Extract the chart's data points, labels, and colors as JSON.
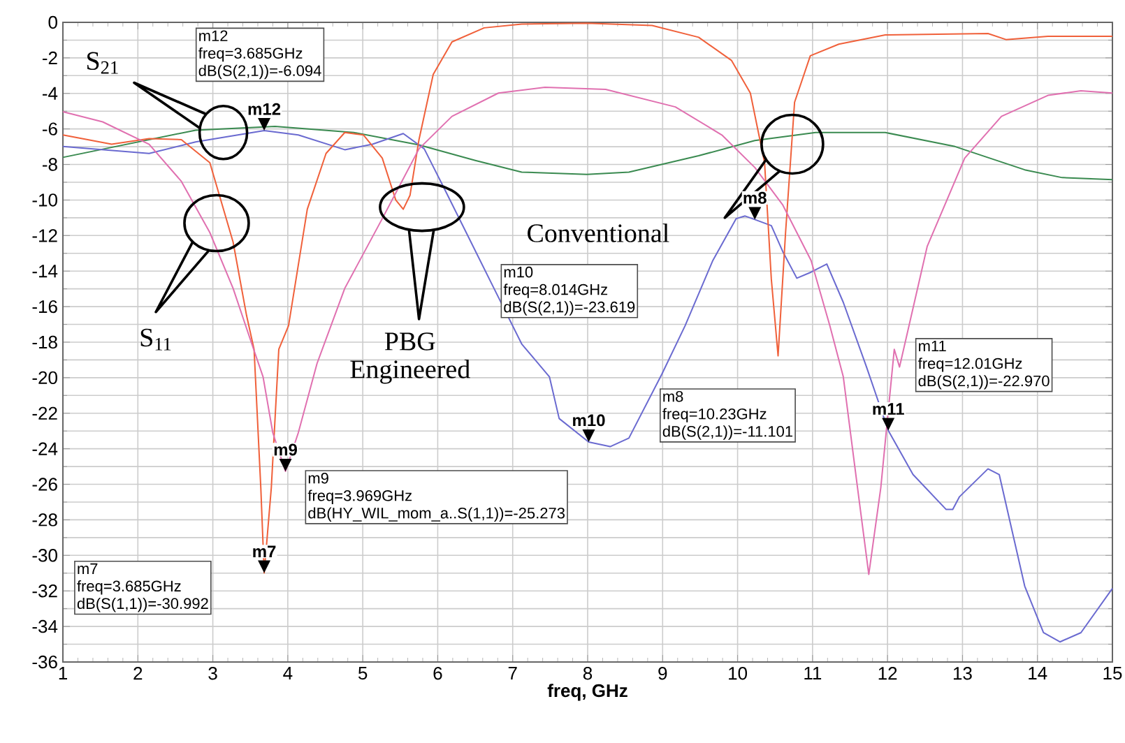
{
  "chart_data": {
    "type": "line",
    "xlabel": "freq, GHz",
    "xlim": [
      1,
      15
    ],
    "ylim": [
      -36,
      0
    ],
    "xticks": [
      1,
      2,
      3,
      4,
      5,
      6,
      7,
      8,
      9,
      10,
      11,
      12,
      13,
      14,
      15
    ],
    "yticks": [
      -36,
      -34,
      -32,
      -30,
      -28,
      -26,
      -24,
      -22,
      -20,
      -18,
      -16,
      -14,
      -12,
      -10,
      -8,
      -6,
      -4,
      -2,
      0
    ],
    "grid": true,
    "series": [
      {
        "color": "#3a8a50",
        "x": [
          1,
          2.77,
          3.83,
          4.88,
          5.75,
          6.5,
          7.12,
          7.99,
          8.55,
          9.48,
          10.23,
          11.04,
          11.97,
          12.9,
          13.83,
          14.33,
          15
        ],
        "values": [
          -7.6,
          -6.07,
          -5.86,
          -6.2,
          -6.9,
          -7.77,
          -8.43,
          -8.56,
          -8.43,
          -7.51,
          -6.65,
          -6.2,
          -6.2,
          -6.99,
          -8.3,
          -8.74,
          -8.85
        ]
      },
      {
        "color": "#6a6ad0",
        "x": [
          1,
          2.15,
          2.77,
          3.685,
          4.14,
          4.76,
          5.13,
          5.54,
          5.82,
          6.07,
          6.38,
          6.75,
          7.12,
          7.49,
          7.62,
          8.014,
          8.3,
          8.55,
          8.99,
          9.3,
          9.67,
          9.98,
          10.1,
          10.23,
          10.45,
          10.6,
          10.79,
          10.98,
          11.19,
          11.41,
          11.72,
          12.01,
          12.34,
          12.78,
          12.87,
          12.96,
          13.34,
          13.49,
          13.83,
          14.08,
          14.3,
          14.58,
          15
        ],
        "values": [
          -6.99,
          -7.38,
          -6.73,
          -6.09,
          -6.34,
          -7.17,
          -6.86,
          -6.26,
          -7.12,
          -9.21,
          -11.83,
          -14.97,
          -18.1,
          -19.95,
          -22.3,
          -23.62,
          -23.88,
          -23.4,
          -19.8,
          -17.07,
          -13.4,
          -11.05,
          -10.9,
          -11.1,
          -11.44,
          -12.88,
          -14.4,
          -14.06,
          -13.6,
          -15.76,
          -19.4,
          -22.97,
          -25.45,
          -27.41,
          -27.41,
          -26.7,
          -25.13,
          -25.45,
          -31.73,
          -34.35,
          -34.87,
          -34.35,
          -31.86
        ]
      },
      {
        "color": "#f0603a",
        "x": [
          1,
          1.65,
          2.15,
          2.58,
          2.96,
          3.27,
          3.45,
          3.55,
          3.64,
          3.685,
          3.78,
          3.88,
          4.01,
          4.26,
          4.51,
          4.76,
          5.01,
          5.26,
          5.44,
          5.54,
          5.63,
          5.75,
          5.94,
          6.19,
          6.62,
          7.12,
          7.99,
          8.86,
          9.48,
          9.92,
          10.17,
          10.36,
          10.45,
          10.54,
          10.64,
          10.76,
          10.97,
          11.35,
          11.97,
          13.34,
          13.58,
          14.14,
          15
        ],
        "values": [
          -6.34,
          -6.86,
          -6.54,
          -6.6,
          -7.9,
          -12.36,
          -16.5,
          -18.4,
          -26.2,
          -30.99,
          -26.2,
          -18.4,
          -17.07,
          -10.52,
          -7.38,
          -6.2,
          -6.34,
          -7.64,
          -10.0,
          -10.52,
          -9.74,
          -6.6,
          -2.93,
          -1.1,
          -0.31,
          -0.1,
          -0.05,
          -0.18,
          -0.84,
          -2.15,
          -3.98,
          -7.9,
          -14.45,
          -18.77,
          -11.83,
          -4.5,
          -1.88,
          -1.23,
          -0.71,
          -0.63,
          -0.97,
          -0.79,
          -0.79
        ]
      },
      {
        "color": "#e070b0",
        "x": [
          1,
          1.53,
          2.15,
          2.58,
          2.96,
          3.27,
          3.52,
          3.67,
          3.8,
          3.969,
          4.14,
          4.39,
          4.76,
          5.26,
          5.75,
          6.19,
          6.81,
          7.43,
          8.24,
          9.17,
          9.79,
          10.23,
          10.6,
          10.98,
          11.23,
          11.41,
          11.6,
          11.75,
          11.91,
          12.09,
          12.16,
          12.53,
          13.03,
          13.52,
          14.14,
          14.58,
          15
        ],
        "values": [
          -5.03,
          -5.6,
          -6.86,
          -8.95,
          -11.83,
          -14.97,
          -18.1,
          -19.95,
          -23.1,
          -25.27,
          -23.1,
          -19.2,
          -14.97,
          -11.05,
          -7.12,
          -5.29,
          -3.98,
          -3.66,
          -3.77,
          -4.76,
          -6.34,
          -8.17,
          -10.26,
          -13.4,
          -17.07,
          -19.95,
          -26.2,
          -31.07,
          -26.2,
          -18.4,
          -19.4,
          -12.6,
          -7.64,
          -5.29,
          -4.11,
          -3.85,
          -3.98
        ]
      }
    ],
    "annotations": [
      "S$_{21}$",
      "S$_{11}$",
      "PBG Engineered",
      "Conventional",
      {
        "text": "m12",
        "x": 3.685,
        "y": -6.094
      },
      "freq=3.685GHz",
      "dB(S(2,1))=-6.094",
      {
        "text": "m10",
        "x": 8.014,
        "y": -23.619
      },
      "freq=8.014GHz",
      "dB(S(2,1))=-23.619",
      {
        "text": "m8",
        "x": 10.23,
        "y": -11.101
      },
      "freq=10.23GHz",
      "dB(S(2,1))=-11.101",
      {
        "text": "m11",
        "x": 12.01,
        "y": -22.97
      },
      "freq=12.01GHz",
      "dB(S(2,1))=-22.970",
      {
        "text": "m9",
        "x": 3.969,
        "y": -25.273
      },
      "freq=3.969GHz",
      "dB(HY_WIL_mom_a..S(1,1))=-25.273",
      {
        "text": "m7",
        "x": 3.685,
        "y": -30.992
      },
      "freq=3.685GHz",
      "dB(S(1,1))=-30.992"
    ]
  }
}
